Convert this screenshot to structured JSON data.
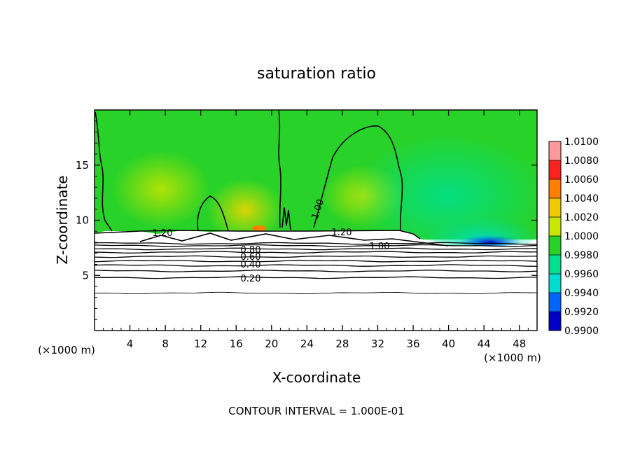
{
  "chart_data": {
    "type": "heatmap",
    "title": "saturation ratio",
    "xlabel": "X-coordinate",
    "ylabel": "Z-coordinate",
    "x_unit_label": "(×1000 m)",
    "x_unit_label_right": "(×1000 m)",
    "xlim": [
      0,
      50
    ],
    "ylim": [
      0,
      20
    ],
    "x_ticks": [
      "4",
      "8",
      "12",
      "16",
      "20",
      "24",
      "28",
      "32",
      "36",
      "40",
      "44",
      "48"
    ],
    "x_tick_values": [
      4,
      8,
      12,
      16,
      20,
      24,
      28,
      32,
      36,
      40,
      44,
      48
    ],
    "y_ticks": [
      "5",
      "10",
      "15"
    ],
    "y_tick_values": [
      5,
      10,
      15
    ],
    "colorbar": {
      "labels": [
        "1.0100",
        "1.0080",
        "1.0060",
        "1.0040",
        "1.0020",
        "1.0000",
        "0.9980",
        "0.9960",
        "0.9940",
        "0.9920",
        "0.9900"
      ],
      "levels": [
        1.01,
        1.008,
        1.006,
        1.004,
        1.002,
        1.0,
        0.998,
        0.996,
        0.994,
        0.992,
        0.99
      ],
      "colors": [
        "#ff9a9a",
        "#ff2020",
        "#ff8000",
        "#f0c800",
        "#c8e600",
        "#28d228",
        "#00e08c",
        "#00dcd2",
        "#0064ff",
        "#0000c8",
        "#5a00a0"
      ]
    },
    "contour_labels": [
      "1.20",
      "1.00",
      "1.20",
      "1.00",
      "0.80",
      "0.60",
      "0.40",
      "0.20"
    ],
    "contour_interval_note": "CONTOUR INTERVAL = 1.000E-01",
    "layers": {
      "saturated_region_z": [
        9.0,
        20.0
      ],
      "cloud_base_z": 8.8,
      "dry_layer_contours": [
        {
          "level": "1.00",
          "z": 7.9
        },
        {
          "level": "0.90",
          "z": 7.7
        },
        {
          "level": "0.80",
          "z": 7.4
        },
        {
          "level": "0.70",
          "z": 7.1
        },
        {
          "level": "0.60",
          "z": 6.7
        },
        {
          "level": "0.50",
          "z": 6.3
        },
        {
          "level": "0.40",
          "z": 5.9
        },
        {
          "level": "0.30",
          "z": 5.4
        },
        {
          "level": "0.20",
          "z": 4.8
        },
        {
          "level": "0.10",
          "z": 3.4
        }
      ]
    }
  }
}
